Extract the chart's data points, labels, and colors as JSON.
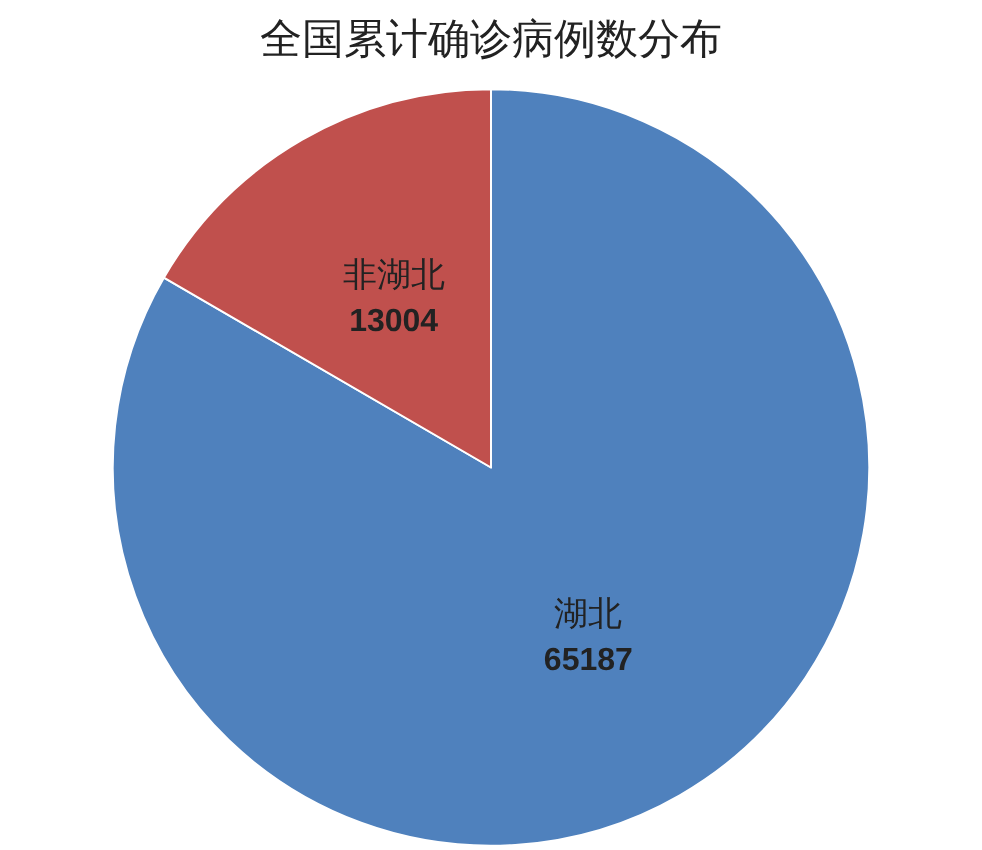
{
  "chart_data": {
    "type": "pie",
    "title": "全国累计确诊病例数分布",
    "categories": [
      "湖北",
      "非湖北"
    ],
    "values": [
      65187,
      13004
    ],
    "colors": [
      "#4f81bd",
      "#c0504d"
    ],
    "data_labels": true
  }
}
